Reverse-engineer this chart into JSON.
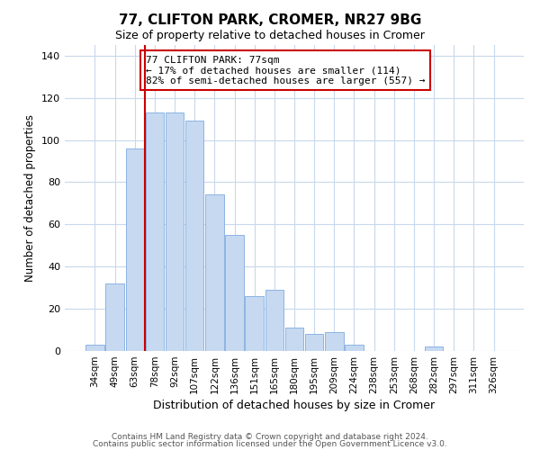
{
  "title": "77, CLIFTON PARK, CROMER, NR27 9BG",
  "subtitle": "Size of property relative to detached houses in Cromer",
  "xlabel": "Distribution of detached houses by size in Cromer",
  "ylabel": "Number of detached properties",
  "bar_labels": [
    "34sqm",
    "49sqm",
    "63sqm",
    "78sqm",
    "92sqm",
    "107sqm",
    "122sqm",
    "136sqm",
    "151sqm",
    "165sqm",
    "180sqm",
    "195sqm",
    "209sqm",
    "224sqm",
    "238sqm",
    "253sqm",
    "268sqm",
    "282sqm",
    "297sqm",
    "311sqm",
    "326sqm"
  ],
  "bar_values": [
    3,
    32,
    96,
    113,
    113,
    109,
    74,
    55,
    26,
    29,
    11,
    8,
    9,
    3,
    0,
    0,
    0,
    2,
    0,
    0,
    0
  ],
  "bar_color": "#c6d9f0",
  "bar_edge_color": "#8db4e2",
  "subject_line_index": 3,
  "subject_line_color": "#cc0000",
  "annotation_text": "77 CLIFTON PARK: 77sqm\n← 17% of detached houses are smaller (114)\n82% of semi-detached houses are larger (557) →",
  "annotation_box_color": "#ffffff",
  "annotation_box_edge": "#cc0000",
  "ylim": [
    0,
    145
  ],
  "yticks": [
    0,
    20,
    40,
    60,
    80,
    100,
    120,
    140
  ],
  "grid_color": "#c8d8ec",
  "footer1": "Contains HM Land Registry data © Crown copyright and database right 2024.",
  "footer2": "Contains public sector information licensed under the Open Government Licence v3.0."
}
